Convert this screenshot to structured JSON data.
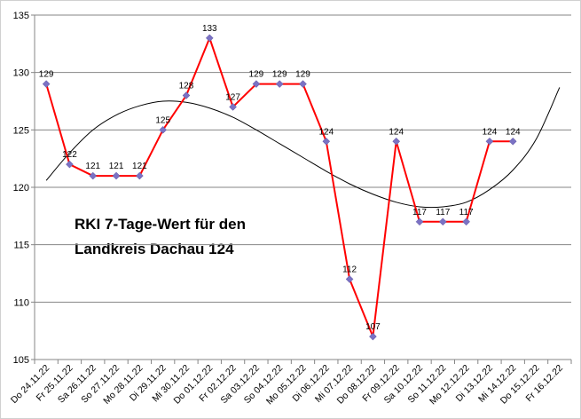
{
  "chart_data": {
    "type": "line",
    "annotation": [
      "RKI 7-Tage-Wert für den",
      "Landkreis Dachau 124"
    ],
    "categories": [
      "Do 24.11.22",
      "Fr 25.11.22",
      "Sa 26.11.22",
      "So 27.11.22",
      "Mo 28.11.22",
      "Di 29.11.22",
      "Mi 30.11.22",
      "Do 01.12.22",
      "Fr 02.12.22",
      "Sa 03.12.22",
      "So 04.12.22",
      "Mo 05.12.22",
      "Di 06.12.22",
      "Mi 07.12.22",
      "Do 08.12.22",
      "Fr 09.12.22",
      "Sa 10.12.22",
      "So 11.12.22",
      "Mo 12.12.22",
      "Di 13.12.22",
      "Mi 14.12.22",
      "Do 15.12.22",
      "Fr 16.12.22"
    ],
    "values": [
      129,
      122,
      121,
      121,
      121,
      125,
      128,
      133,
      127,
      129,
      129,
      129,
      124,
      112,
      107,
      124,
      117,
      117,
      117,
      124,
      124,
      null,
      null
    ],
    "color": "#ff0000",
    "marker_color": "#7b72c4",
    "trendline": {
      "color": "#000000",
      "values": [
        120.6,
        123,
        125,
        126.3,
        127.1,
        127.5,
        127.4,
        126.9,
        126.1,
        125,
        123.8,
        122.6,
        121.4,
        120.3,
        119.4,
        118.7,
        118.3,
        118.3,
        118.7,
        119.8,
        121.5,
        124.2,
        128.7
      ]
    },
    "ylim": [
      105,
      135
    ],
    "yticks": [
      105,
      110,
      115,
      120,
      125,
      130,
      135
    ],
    "grid": true
  }
}
